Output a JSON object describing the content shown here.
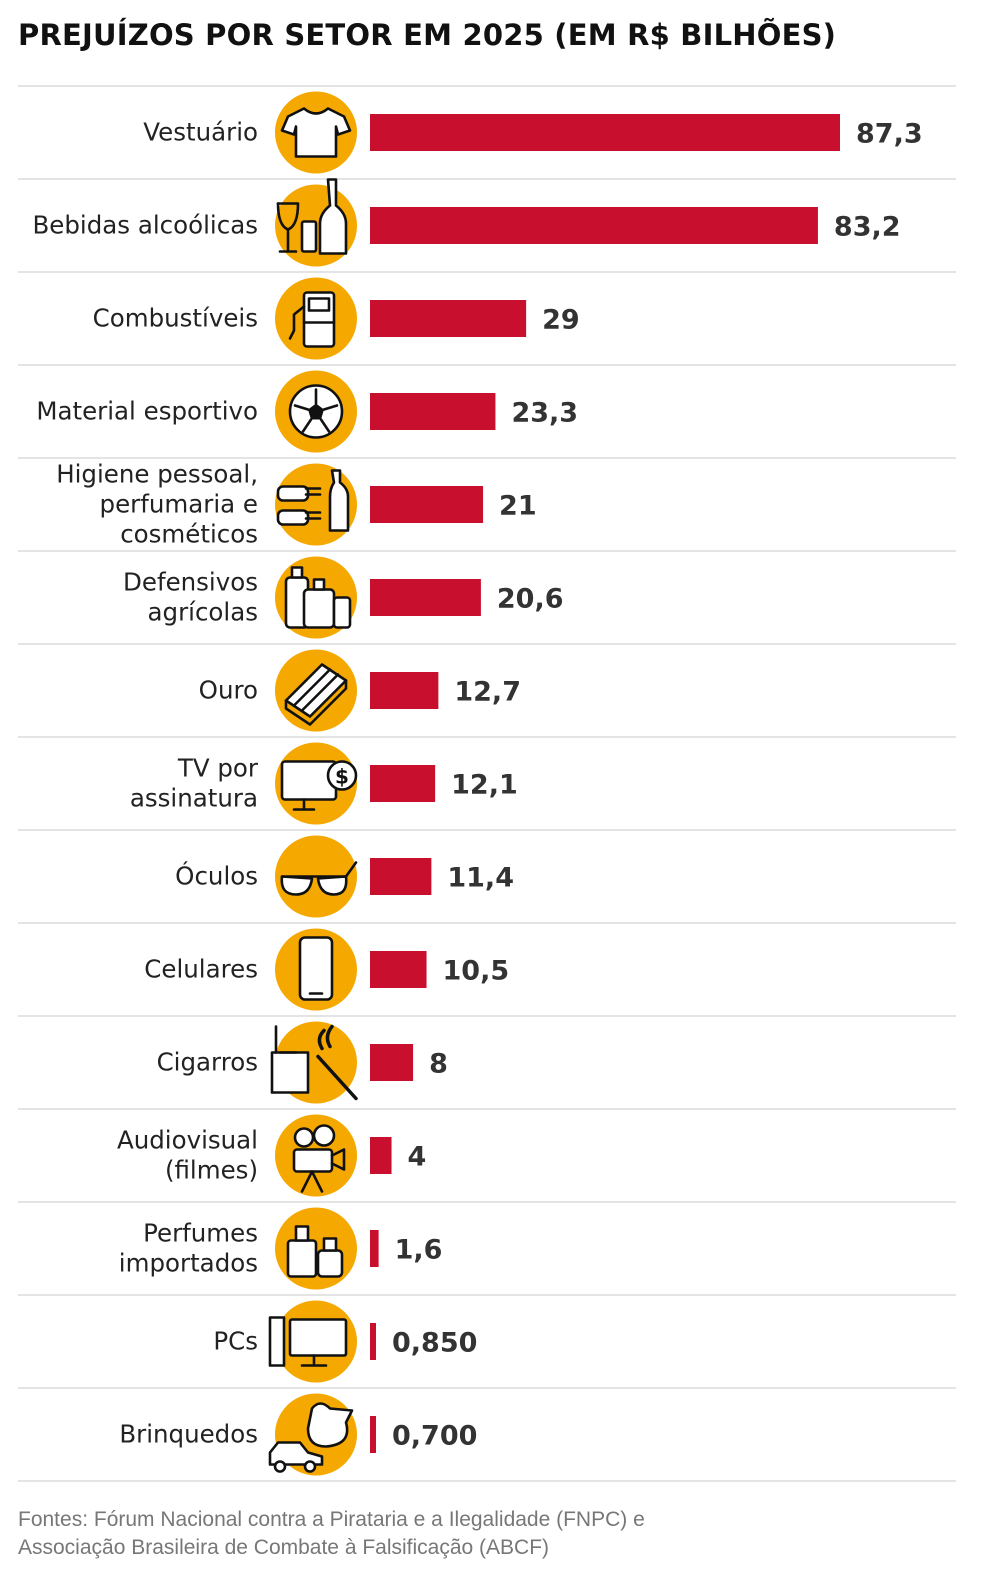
{
  "title": "PREJUÍZOS POR SETOR EM 2025 (EM R$ BILHÕES)",
  "colors": {
    "bar": "#c8102e",
    "icon_circle": "#f5a800",
    "separator": "#d4d4d4"
  },
  "chart_data": {
    "type": "bar",
    "orientation": "horizontal",
    "title": "PREJUÍZOS POR SETOR EM 2025 (EM R$ BILHÕES)",
    "xlabel": "",
    "ylabel": "",
    "grid": false,
    "categories": [
      {
        "name": "Vestuário",
        "lines": [
          "Vestuário"
        ],
        "icon": "tshirt-icon",
        "value": 87.3,
        "label": "87,3"
      },
      {
        "name": "Bebidas alcoólicas",
        "lines": [
          "Bebidas alcoólicas"
        ],
        "icon": "drinks-icon",
        "value": 83.2,
        "label": "83,2"
      },
      {
        "name": "Combustíveis",
        "lines": [
          "Combustíveis"
        ],
        "icon": "fuel-pump-icon",
        "value": 29,
        "label": "29"
      },
      {
        "name": "Material esportivo",
        "lines": [
          "Material esportivo"
        ],
        "icon": "soccer-ball-icon",
        "value": 23.3,
        "label": "23,3"
      },
      {
        "name": "Higiene pessoal, perfumaria e cosméticos",
        "lines": [
          "Higiene pessoal,",
          "perfumaria e",
          "cosméticos"
        ],
        "icon": "toiletries-icon",
        "value": 21,
        "label": "21"
      },
      {
        "name": "Defensivos agrícolas",
        "lines": [
          "Defensivos",
          "agrícolas"
        ],
        "icon": "pesticide-containers-icon",
        "value": 20.6,
        "label": "20,6"
      },
      {
        "name": "Ouro",
        "lines": [
          "Ouro"
        ],
        "icon": "gold-bars-icon",
        "value": 12.7,
        "label": "12,7"
      },
      {
        "name": "TV por assinatura",
        "lines": [
          "TV por",
          "assinatura"
        ],
        "icon": "tv-dollar-icon",
        "value": 12.1,
        "label": "12,1"
      },
      {
        "name": "Óculos",
        "lines": [
          "Óculos"
        ],
        "icon": "glasses-icon",
        "value": 11.4,
        "label": "11,4"
      },
      {
        "name": "Celulares",
        "lines": [
          "Celulares"
        ],
        "icon": "phone-icon",
        "value": 10.5,
        "label": "10,5"
      },
      {
        "name": "Cigarros",
        "lines": [
          "Cigarros"
        ],
        "icon": "cigarettes-icon",
        "value": 8,
        "label": "8"
      },
      {
        "name": "Audiovisual (filmes)",
        "lines": [
          "Audiovisual",
          "(filmes)"
        ],
        "icon": "film-camera-icon",
        "value": 4,
        "label": "4"
      },
      {
        "name": "Perfumes importados",
        "lines": [
          "Perfumes",
          "importados"
        ],
        "icon": "perfume-bottles-icon",
        "value": 1.6,
        "label": "1,6"
      },
      {
        "name": "PCs",
        "lines": [
          "PCs"
        ],
        "icon": "computer-icon",
        "value": 0.85,
        "label": "0,850"
      },
      {
        "name": "Brinquedos",
        "lines": [
          "Brinquedos"
        ],
        "icon": "toys-icon",
        "value": 0.7,
        "label": "0,700"
      }
    ]
  },
  "footer": {
    "line1": "Fontes: Fórum Nacional contra a Pirataria e a Ilegalidade (FNPC) e",
    "line2": "Associação Brasileira de Combate à Falsificação (ABCF)"
  }
}
